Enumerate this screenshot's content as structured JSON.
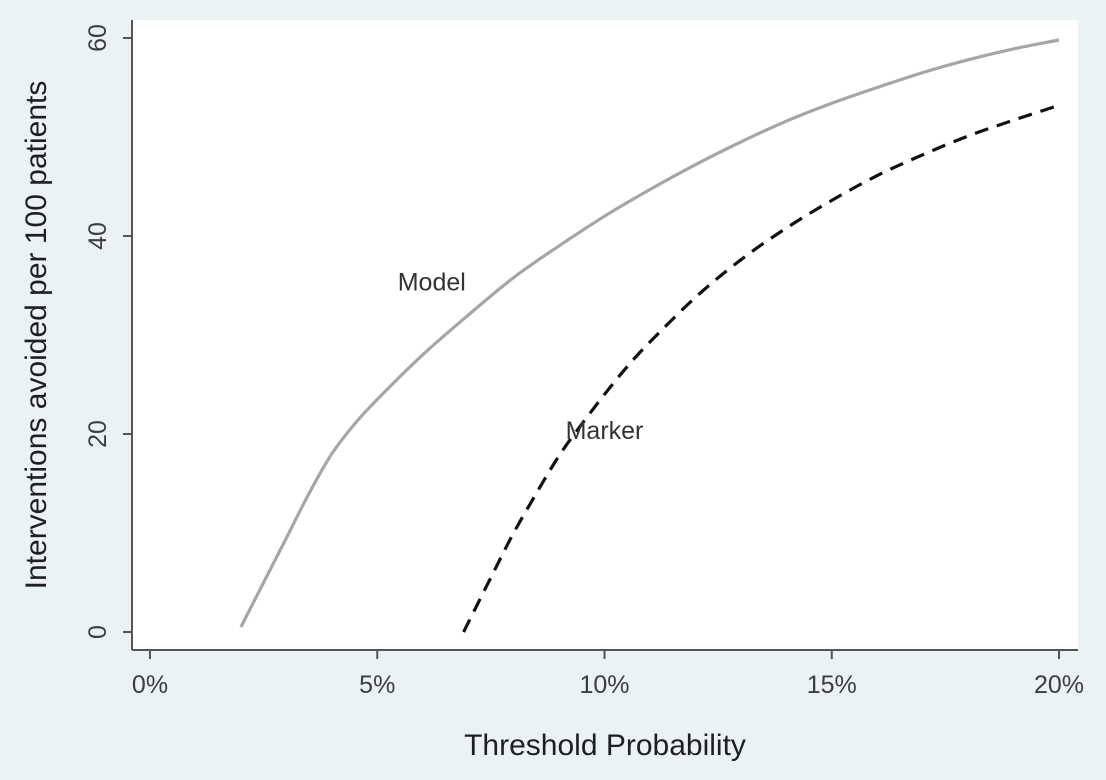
{
  "chart_data": {
    "type": "line",
    "title": "",
    "xlabel": "Threshold Probability",
    "ylabel": "Interventions avoided per 100 patients",
    "xlim": [
      0,
      20
    ],
    "ylim": [
      0,
      60
    ],
    "x_ticks": [
      {
        "value": 0,
        "label": "0%"
      },
      {
        "value": 5,
        "label": "5%"
      },
      {
        "value": 10,
        "label": "10%"
      },
      {
        "value": 15,
        "label": "15%"
      },
      {
        "value": 20,
        "label": "20%"
      }
    ],
    "y_ticks": [
      {
        "value": 0,
        "label": "0"
      },
      {
        "value": 20,
        "label": "20"
      },
      {
        "value": 40,
        "label": "40"
      },
      {
        "value": 60,
        "label": "60"
      }
    ],
    "grid": false,
    "legend": "none",
    "series": [
      {
        "name": "Model",
        "color": "#a6a6a6",
        "style": "solid",
        "label_at": {
          "x": 6.2,
          "y": 34.5
        },
        "x": [
          2.0,
          2.5,
          3.0,
          3.5,
          4.0,
          4.5,
          5.0,
          6.0,
          7.0,
          8.0,
          9.0,
          10.0,
          11.0,
          12.0,
          13.0,
          14.0,
          15.0,
          16.0,
          17.0,
          18.0,
          19.0,
          20.0
        ],
        "y": [
          0.5,
          5.0,
          9.5,
          14.0,
          18.0,
          21.0,
          23.5,
          28.0,
          32.0,
          35.8,
          39.0,
          42.0,
          44.7,
          47.2,
          49.5,
          51.6,
          53.4,
          55.0,
          56.5,
          57.8,
          58.9,
          59.8
        ]
      },
      {
        "name": "Marker",
        "color": "#111111",
        "style": "dashed",
        "label_at": {
          "x": 10.0,
          "y": 19.5
        },
        "x": [
          6.9,
          7.5,
          8.0,
          8.5,
          9.0,
          9.5,
          10.0,
          10.5,
          11.0,
          12.0,
          13.0,
          14.0,
          15.0,
          16.0,
          17.0,
          18.0,
          19.0,
          20.0
        ],
        "y": [
          0.0,
          5.5,
          10.0,
          14.0,
          17.8,
          21.0,
          24.0,
          26.8,
          29.3,
          33.8,
          37.6,
          40.8,
          43.6,
          46.1,
          48.2,
          50.1,
          51.7,
          53.2
        ]
      }
    ]
  }
}
